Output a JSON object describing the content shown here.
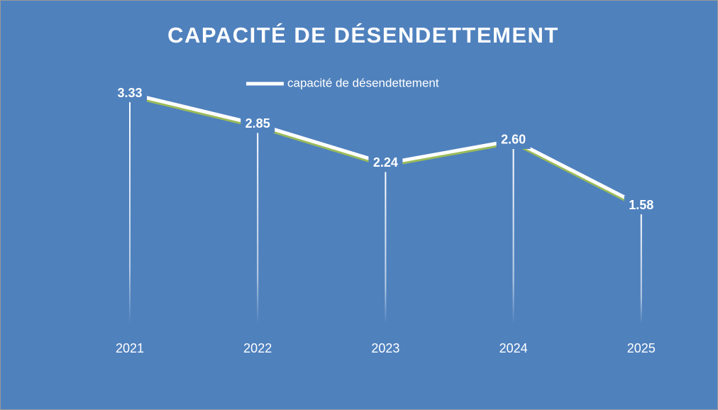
{
  "chart_data": {
    "type": "line",
    "title": "CAPACITÉ DE DÉSENDETTEMENT",
    "categories": [
      "2021",
      "2022",
      "2023",
      "2024",
      "2025"
    ],
    "series": [
      {
        "name": "capacité de désendettement",
        "color": "#ffffff",
        "values": [
          3.33,
          2.85,
          2.24,
          2.6,
          1.58
        ],
        "value_labels": [
          "3.33",
          "2.85",
          "2.24",
          "2.60",
          "1.58"
        ]
      }
    ],
    "ylim": [
      0,
      3.5
    ],
    "shadow_color": "#9bbb59",
    "background": "#4f81bd"
  }
}
